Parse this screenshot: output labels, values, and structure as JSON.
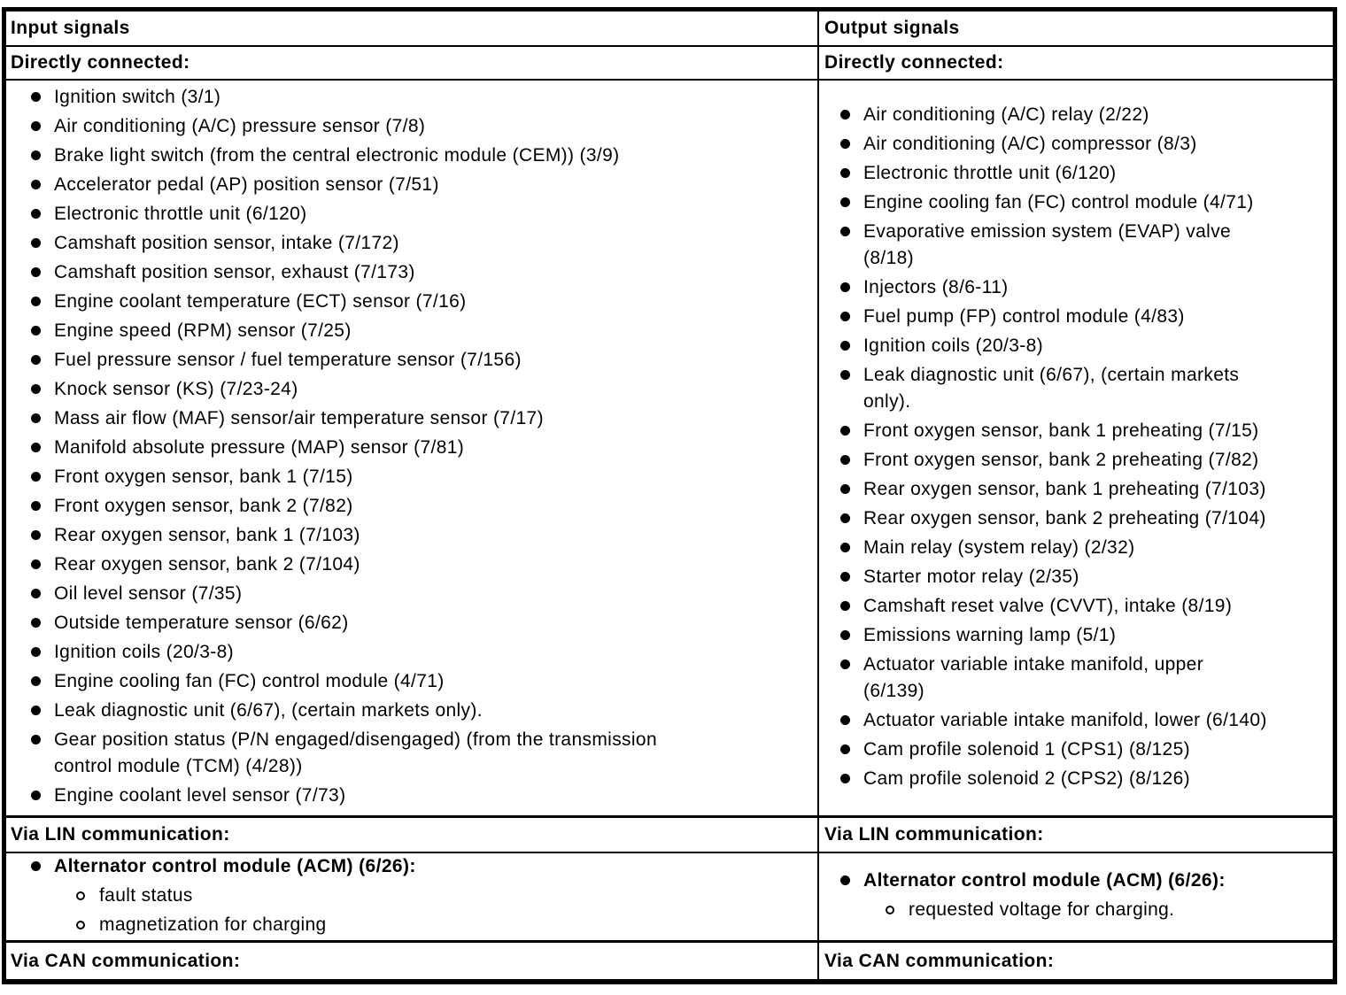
{
  "colors": {
    "text": "#000000",
    "border": "#000000",
    "background": "#ffffff"
  },
  "input": {
    "header": "Input signals",
    "directly_connected_title": "Directly connected:",
    "items": [
      "Ignition switch (3/1)",
      "Air conditioning (A/C) pressure sensor (7/8)",
      "Brake light switch (from the central electronic module (CEM)) (3/9)",
      "Accelerator pedal (AP) position sensor (7/51)",
      "Electronic throttle unit (6/120)",
      "Camshaft position sensor, intake (7/172)",
      "Camshaft position sensor, exhaust (7/173)",
      "Engine coolant temperature (ECT) sensor (7/16)",
      "Engine speed (RPM) sensor (7/25)",
      "Fuel pressure sensor / fuel temperature sensor (7/156)",
      "Knock sensor (KS) (7/23-24)",
      "Mass air flow (MAF) sensor/air temperature sensor (7/17)",
      "Manifold absolute pressure (MAP) sensor (7/81)",
      "Front oxygen sensor, bank 1 (7/15)",
      "Front oxygen sensor, bank 2 (7/82)",
      "Rear oxygen sensor, bank 1 (7/103)",
      "Rear oxygen sensor, bank 2 (7/104)",
      "Oil level sensor (7/35)",
      "Outside temperature sensor (6/62)",
      "Ignition coils (20/3-8)",
      "Engine cooling fan (FC) control module (4/71)",
      "Leak diagnostic unit (6/67), (certain markets only).",
      "Gear position status (P/N engaged/disengaged) (from the transmission\ncontrol module (TCM) (4/28))",
      "Engine coolant level sensor (7/73)"
    ],
    "lin_title": "Via LIN communication:",
    "lin_items": [
      {
        "label": "Alternator control module (ACM) (6/26):",
        "sub": [
          "fault status",
          "magnetization for charging"
        ]
      }
    ],
    "can_title": "Via CAN communication:"
  },
  "output": {
    "header": "Output signals",
    "directly_connected_title": "Directly connected:",
    "items": [
      "Air conditioning (A/C) relay (2/22)",
      "Air conditioning (A/C) compressor (8/3)",
      "Electronic throttle unit (6/120)",
      "Engine cooling fan (FC) control module (4/71)",
      "Evaporative emission system (EVAP) valve\n(8/18)",
      "Injectors (8/6-11)",
      "Fuel pump (FP) control module (4/83)",
      "Ignition coils (20/3-8)",
      "Leak diagnostic unit (6/67), (certain markets\nonly).",
      "Front oxygen sensor, bank 1 preheating (7/15)",
      "Front oxygen sensor, bank 2 preheating (7/82)",
      "Rear oxygen sensor, bank 1 preheating (7/103)",
      "Rear oxygen sensor, bank 2 preheating (7/104)",
      "Main relay (system relay) (2/32)",
      "Starter motor relay (2/35)",
      "Camshaft reset valve (CVVT), intake (8/19)",
      "Emissions warning lamp (5/1)",
      "Actuator variable intake manifold, upper\n(6/139)",
      "Actuator variable intake manifold, lower (6/140)",
      "Cam profile solenoid 1 (CPS1) (8/125)",
      "Cam profile solenoid 2 (CPS2) (8/126)"
    ],
    "lin_title": "Via LIN communication:",
    "lin_items": [
      {
        "label": "Alternator control module (ACM) (6/26):",
        "sub": [
          "requested voltage for charging."
        ]
      }
    ],
    "can_title": "Via CAN communication:"
  }
}
